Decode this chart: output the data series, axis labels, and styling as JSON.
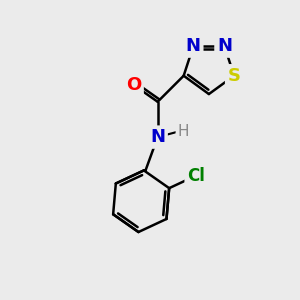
{
  "bg_color": "#ebebeb",
  "bond_color": "#000000",
  "line_width": 1.8,
  "atoms": {
    "S": {
      "color": "#cccc00",
      "fontsize": 13,
      "fontweight": "bold"
    },
    "N": {
      "color": "#0000cc",
      "fontsize": 13,
      "fontweight": "bold"
    },
    "O": {
      "color": "#ff0000",
      "fontsize": 13,
      "fontweight": "bold"
    },
    "Cl": {
      "color": "#008000",
      "fontsize": 12,
      "fontweight": "bold"
    },
    "H": {
      "color": "#888888",
      "fontsize": 11,
      "fontweight": "normal"
    }
  }
}
